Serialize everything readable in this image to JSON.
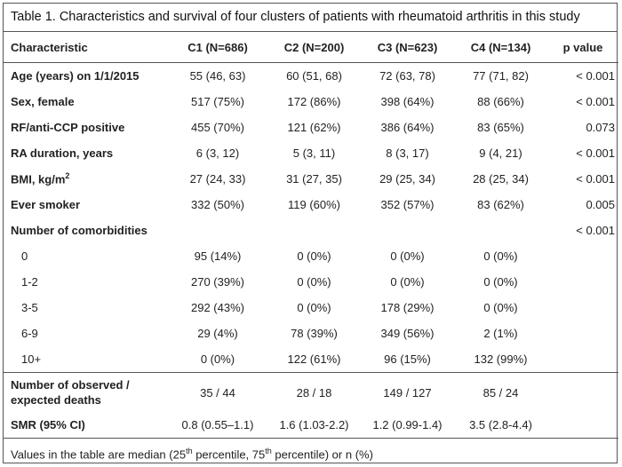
{
  "caption": "Table 1. Characteristics and survival of four clusters of patients with rheumatoid arthritis in this study",
  "headers": [
    "Characteristic",
    "C1 (N=686)",
    "C2 (N=200)",
    "C3 (N=623)",
    "C4 (N=134)",
    "p value"
  ],
  "rows": [
    {
      "label": "Age (years) on 1/1/2015",
      "c1": "55 (46, 63)",
      "c2": "60 (51, 68)",
      "c3": "72 (63, 78)",
      "c4": "77 (71, 82)",
      "p": "< 0.001"
    },
    {
      "label": "Sex, female",
      "c1": "517 (75%)",
      "c2": "172 (86%)",
      "c3": "398 (64%)",
      "c4": "88 (66%)",
      "p": "< 0.001"
    },
    {
      "label": "RF/anti-CCP positive",
      "c1": "455 (70%)",
      "c2": "121 (62%)",
      "c3": "386 (64%)",
      "c4": "83 (65%)",
      "p": "0.073"
    },
    {
      "label": "RA duration, years",
      "c1": "6 (3, 12)",
      "c2": "5 (3, 11)",
      "c3": "8 (3, 17)",
      "c4": "9 (4, 21)",
      "p": "< 0.001"
    },
    {
      "label": "BMI, kg/m",
      "label_sup": "2",
      "c1": "27 (24, 33)",
      "c2": "31 (27, 35)",
      "c3": "29 (25, 34)",
      "c4": "28 (25, 34)",
      "p": "< 0.001"
    },
    {
      "label": "Ever smoker",
      "c1": "332 (50%)",
      "c2": "119 (60%)",
      "c3": "352 (57%)",
      "c4": "83 (62%)",
      "p": "0.005"
    },
    {
      "label": "Number of comorbidities",
      "c1": "",
      "c2": "",
      "c3": "",
      "c4": "",
      "p": "< 0.001"
    },
    {
      "label": "0",
      "c1": "95 (14%)",
      "c2": "0 (0%)",
      "c3": "0 (0%)",
      "c4": "0 (0%)",
      "p": ""
    },
    {
      "label": "1-2",
      "c1": "270 (39%)",
      "c2": "0 (0%)",
      "c3": "0 (0%)",
      "c4": "0 (0%)",
      "p": ""
    },
    {
      "label": "3-5",
      "c1": "292 (43%)",
      "c2": "0 (0%)",
      "c3": "178 (29%)",
      "c4": "0 (0%)",
      "p": ""
    },
    {
      "label": "6-9",
      "c1": "29 (4%)",
      "c2": "78 (39%)",
      "c3": "349 (56%)",
      "c4": "2 (1%)",
      "p": ""
    },
    {
      "label": "10+",
      "c1": "0 (0%)",
      "c2": "122 (61%)",
      "c3": "96 (15%)",
      "c4": "132 (99%)",
      "p": ""
    },
    {
      "label": "Number of observed /",
      "label_line2": "expected deaths",
      "c1": "35 / 44",
      "c2": "28 / 18",
      "c3": "149 / 127",
      "c4": "85 / 24",
      "p": ""
    },
    {
      "label": "SMR (95% CI)",
      "c1": "0.8 (0.55–1.1)",
      "c2": "1.6 (1.03-2.2)",
      "c3": "1.2 (0.99-1.4)",
      "c4": "3.5 (2.8-4.4)",
      "p": ""
    }
  ],
  "footnote": {
    "part1": "Values in the table are median (25",
    "sup1": "th",
    "part2": " percentile, 75",
    "sup2": "th",
    "part3": " percentile) or n (%)"
  }
}
